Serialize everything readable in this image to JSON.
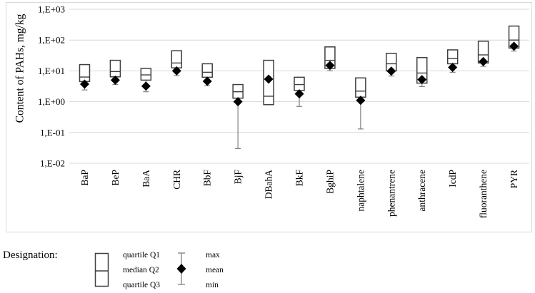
{
  "colors": {
    "grid": "#d9d9d9",
    "panel_border": "#d9d9d9",
    "box_stroke": "#3f3f3f",
    "whisker": "#808080",
    "diamond": "#000000",
    "text": "#000000"
  },
  "chart_data": {
    "type": "box",
    "title": "",
    "ylabel": "Content of PAHs, mg/kg",
    "xlabel": "",
    "y_scale": "log",
    "ylim": [
      0.01,
      1000
    ],
    "grid": true,
    "y_ticks": [
      {
        "label": "1,E+03",
        "value": 1000
      },
      {
        "label": "1,E+02",
        "value": 100
      },
      {
        "label": "1,E+01",
        "value": 10
      },
      {
        "label": "1,E+00",
        "value": 1
      },
      {
        "label": "1,E-01",
        "value": 0.1
      },
      {
        "label": "1,E-02",
        "value": 0.01
      }
    ],
    "categories": [
      "BaP",
      "BeP",
      "BaA",
      "CHR",
      "BbF",
      "BjF",
      "DBahA",
      "BkF",
      "BghiP",
      "naphtalene",
      "phenantrene",
      "anthracene",
      "IcdP",
      "fluoranthene",
      "PYR"
    ],
    "boxes": [
      {
        "category": "BaP",
        "max": 16,
        "q1": 16,
        "median": 6.3,
        "q3": 4.5,
        "mean": 3.7,
        "min": 2.4
      },
      {
        "category": "BeP",
        "max": 22,
        "q1": 22,
        "median": 9.5,
        "q3": 6.4,
        "mean": 5.0,
        "min": 3.6
      },
      {
        "category": "BaA",
        "max": 12,
        "q1": 12,
        "median": 7.4,
        "q3": 5.0,
        "mean": 3.2,
        "min": 2.1
      },
      {
        "category": "CHR",
        "max": 45,
        "q1": 45,
        "median": 18,
        "q3": 12.5,
        "mean": 10,
        "min": 7.0
      },
      {
        "category": "BbF",
        "max": 17,
        "q1": 17,
        "median": 9.0,
        "q3": 6.2,
        "mean": 4.6,
        "min": 3.3
      },
      {
        "category": "BjF",
        "max": 3.6,
        "q1": 3.6,
        "median": 2.1,
        "q3": 1.3,
        "mean": 1.0,
        "min": 0.03
      },
      {
        "category": "DBahA",
        "max": 22,
        "q1": 22,
        "median": 1.5,
        "q3": 0.8,
        "mean": 5.4,
        "min": 0.8
      },
      {
        "category": "BkF",
        "max": 6.2,
        "q1": 6.2,
        "median": 3.6,
        "q3": 2.3,
        "mean": 1.8,
        "min": 0.7
      },
      {
        "category": "BghiP",
        "max": 60,
        "q1": 60,
        "median": 22,
        "q3": 12,
        "mean": 15,
        "min": 10
      },
      {
        "category": "naphtalene",
        "max": 5.9,
        "q1": 5.9,
        "median": 2.2,
        "q3": 1.4,
        "mean": 1.1,
        "min": 0.13
      },
      {
        "category": "phenantrene",
        "max": 37,
        "q1": 37,
        "median": 17,
        "q3": 10,
        "mean": 9.8,
        "min": 6.8
      },
      {
        "category": "anthracene",
        "max": 27,
        "q1": 27,
        "median": 8.5,
        "q3": 4.0,
        "mean": 5.2,
        "min": 3.1
      },
      {
        "category": "IcdP",
        "max": 48,
        "q1": 48,
        "median": 25,
        "q3": 17,
        "mean": 13,
        "min": 9.0
      },
      {
        "category": "fluoranthene",
        "max": 92,
        "q1": 92,
        "median": 33,
        "q3": 18,
        "mean": 20,
        "min": 14
      },
      {
        "category": "PYR",
        "max": 285,
        "q1": 285,
        "median": 100,
        "q3": 55,
        "mean": 63,
        "min": 44
      }
    ],
    "legend_position": "bottom"
  },
  "legend": {
    "title": "Designation:",
    "box_labels": [
      "quartile Q1",
      "median Q2",
      "quartile Q3"
    ],
    "whisker_labels": [
      "max",
      "mean",
      "min"
    ]
  }
}
